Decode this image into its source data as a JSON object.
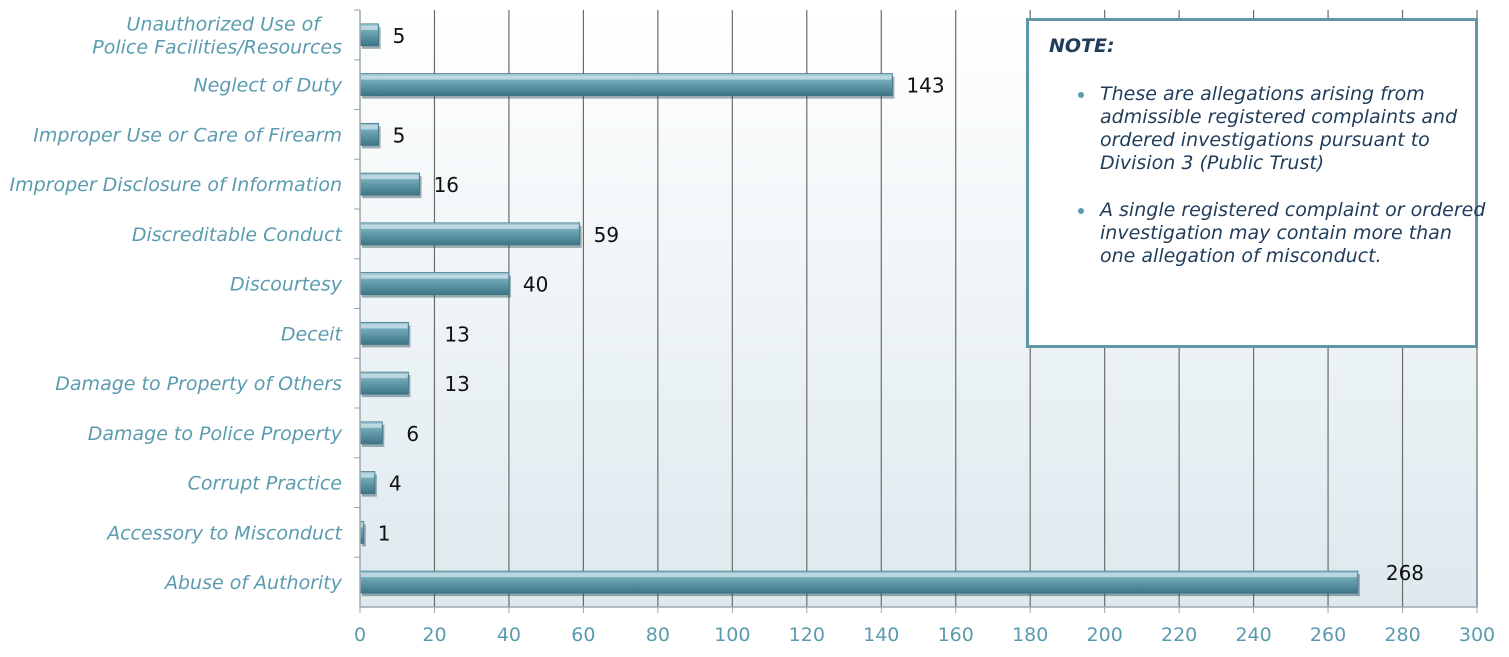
{
  "chart_data": {
    "type": "bar",
    "orientation": "horizontal",
    "categories": [
      "Unauthorized Use of\nPolice Facilities/Resources",
      "Neglect of Duty",
      "Improper Use or Care of Firearm",
      "Improper Disclosure of Information",
      "Discreditable Conduct",
      "Discourtesy",
      "Deceit",
      "Damage to Property of Others",
      "Damage to Police Property",
      "Corrupt Practice",
      "Accessory to Misconduct",
      "Abuse of Authority"
    ],
    "values": [
      5,
      143,
      5,
      16,
      59,
      40,
      13,
      13,
      6,
      4,
      1,
      268
    ],
    "xlim": [
      0,
      300
    ],
    "xticks": [
      "0",
      "20",
      "40",
      "60",
      "80",
      "100",
      "120",
      "140",
      "160",
      "180",
      "200",
      "220",
      "240",
      "260",
      "280",
      "300"
    ],
    "grid": "vertical",
    "bar_color": "#5f97a6",
    "axis_label_color": "#5b9bb0"
  },
  "note": {
    "title": "NOTE:",
    "items": [
      "These are allegations arising from admissible registered complaints and ordered investigations pursuant to Division 3 (Public Trust)",
      "A single registered complaint or ordered investigation may contain more than one allegation of misconduct."
    ]
  }
}
